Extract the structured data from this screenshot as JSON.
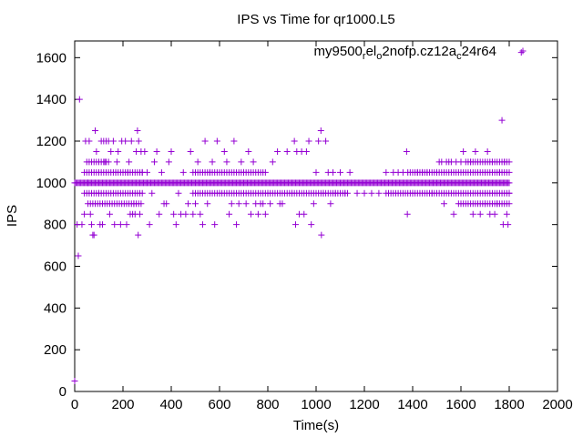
{
  "chart_data": {
    "type": "scatter",
    "title": "IPS vs Time for qr1000.L5",
    "xlabel": "Time(s)",
    "ylabel": "IPS",
    "xlim": [
      0,
      2000
    ],
    "ylim": [
      0,
      1680
    ],
    "xticks": [
      0,
      200,
      400,
      600,
      800,
      1000,
      1200,
      1400,
      1600,
      1800,
      2000
    ],
    "yticks": [
      0,
      200,
      400,
      600,
      800,
      1000,
      1200,
      1400,
      1600
    ],
    "grid": false,
    "legend_position": "top-right",
    "marker": "plus",
    "color": "#9400d3",
    "series": [
      {
        "legend": {
          "part1": "my9500",
          "sub1": "r",
          "part2": "el",
          "sub2": "o",
          "part3": "2nofp.cz12a",
          "sub3": "c",
          "part4": "24r64"
        },
        "bands": [
          {
            "y": 1000,
            "ranges": [
              [
                0,
                1800
              ]
            ],
            "step": 5
          },
          {
            "y": 950,
            "ranges": [
              [
                40,
                280
              ],
              [
                490,
                1130
              ],
              [
                1290,
                1800
              ]
            ],
            "step": 10
          },
          {
            "y": 1050,
            "ranges": [
              [
                40,
                280
              ],
              [
                490,
                790
              ],
              [
                1390,
                1800
              ]
            ],
            "step": 10
          },
          {
            "y": 900,
            "ranges": [
              [
                55,
                280
              ],
              [
                1600,
                1800
              ]
            ],
            "step": 10
          },
          {
            "y": 1100,
            "ranges": [
              [
                60,
                140
              ],
              [
                1620,
                1800
              ]
            ],
            "step": 10
          }
        ],
        "points": [
          [
            0,
            50
          ],
          [
            15,
            650
          ],
          [
            20,
            1400
          ],
          [
            10,
            800
          ],
          [
            30,
            800
          ],
          [
            40,
            850
          ],
          [
            45,
            1200
          ],
          [
            50,
            1100
          ],
          [
            55,
            1000
          ],
          [
            60,
            1200
          ],
          [
            65,
            850
          ],
          [
            70,
            800
          ],
          [
            75,
            750
          ],
          [
            80,
            750
          ],
          [
            85,
            1250
          ],
          [
            90,
            1150
          ],
          [
            100,
            950
          ],
          [
            105,
            800
          ],
          [
            110,
            1200
          ],
          [
            115,
            800
          ],
          [
            120,
            1200
          ],
          [
            125,
            1100
          ],
          [
            130,
            1200
          ],
          [
            140,
            1200
          ],
          [
            145,
            850
          ],
          [
            150,
            1150
          ],
          [
            160,
            1200
          ],
          [
            165,
            800
          ],
          [
            170,
            1050
          ],
          [
            175,
            1100
          ],
          [
            180,
            1150
          ],
          [
            190,
            800
          ],
          [
            195,
            1200
          ],
          [
            200,
            1050
          ],
          [
            210,
            1200
          ],
          [
            215,
            800
          ],
          [
            220,
            1050
          ],
          [
            225,
            1100
          ],
          [
            230,
            850
          ],
          [
            235,
            1200
          ],
          [
            240,
            850
          ],
          [
            245,
            900
          ],
          [
            250,
            850
          ],
          [
            255,
            1150
          ],
          [
            260,
            1250
          ],
          [
            263,
            750
          ],
          [
            265,
            1200
          ],
          [
            270,
            850
          ],
          [
            275,
            1150
          ],
          [
            280,
            1050
          ],
          [
            290,
            1150
          ],
          [
            300,
            1050
          ],
          [
            310,
            800
          ],
          [
            320,
            950
          ],
          [
            330,
            1100
          ],
          [
            340,
            1150
          ],
          [
            350,
            850
          ],
          [
            360,
            1050
          ],
          [
            370,
            900
          ],
          [
            380,
            900
          ],
          [
            390,
            1100
          ],
          [
            400,
            1150
          ],
          [
            410,
            850
          ],
          [
            420,
            800
          ],
          [
            430,
            950
          ],
          [
            440,
            850
          ],
          [
            450,
            1050
          ],
          [
            460,
            850
          ],
          [
            470,
            900
          ],
          [
            480,
            1150
          ],
          [
            490,
            850
          ],
          [
            500,
            900
          ],
          [
            510,
            1100
          ],
          [
            520,
            850
          ],
          [
            530,
            800
          ],
          [
            540,
            1200
          ],
          [
            550,
            900
          ],
          [
            560,
            1050
          ],
          [
            570,
            1100
          ],
          [
            580,
            800
          ],
          [
            590,
            1200
          ],
          [
            600,
            950
          ],
          [
            620,
            1150
          ],
          [
            630,
            1100
          ],
          [
            640,
            850
          ],
          [
            650,
            900
          ],
          [
            660,
            1200
          ],
          [
            670,
            800
          ],
          [
            680,
            900
          ],
          [
            690,
            1100
          ],
          [
            700,
            1050
          ],
          [
            710,
            900
          ],
          [
            720,
            1150
          ],
          [
            730,
            850
          ],
          [
            740,
            1100
          ],
          [
            750,
            900
          ],
          [
            760,
            850
          ],
          [
            770,
            900
          ],
          [
            780,
            900
          ],
          [
            790,
            850
          ],
          [
            800,
            950
          ],
          [
            810,
            900
          ],
          [
            820,
            1100
          ],
          [
            840,
            1150
          ],
          [
            850,
            900
          ],
          [
            860,
            900
          ],
          [
            880,
            1150
          ],
          [
            900,
            950
          ],
          [
            910,
            1200
          ],
          [
            915,
            800
          ],
          [
            920,
            1150
          ],
          [
            930,
            850
          ],
          [
            940,
            1150
          ],
          [
            950,
            850
          ],
          [
            960,
            1150
          ],
          [
            970,
            1200
          ],
          [
            980,
            800
          ],
          [
            990,
            900
          ],
          [
            1000,
            1050
          ],
          [
            1010,
            1200
          ],
          [
            1020,
            1250
          ],
          [
            1022,
            750
          ],
          [
            1030,
            950
          ],
          [
            1040,
            1200
          ],
          [
            1050,
            1050
          ],
          [
            1060,
            900
          ],
          [
            1070,
            1050
          ],
          [
            1080,
            950
          ],
          [
            1100,
            1050
          ],
          [
            1120,
            950
          ],
          [
            1140,
            1050
          ],
          [
            1170,
            950
          ],
          [
            1200,
            950
          ],
          [
            1230,
            950
          ],
          [
            1260,
            950
          ],
          [
            1290,
            1050
          ],
          [
            1320,
            1050
          ],
          [
            1340,
            1050
          ],
          [
            1360,
            1050
          ],
          [
            1375,
            1150
          ],
          [
            1378,
            850
          ],
          [
            1380,
            1050
          ],
          [
            1400,
            950
          ],
          [
            1420,
            1050
          ],
          [
            1440,
            1050
          ],
          [
            1460,
            1050
          ],
          [
            1480,
            950
          ],
          [
            1500,
            1050
          ],
          [
            1510,
            1100
          ],
          [
            1520,
            1100
          ],
          [
            1530,
            900
          ],
          [
            1540,
            1100
          ],
          [
            1550,
            1100
          ],
          [
            1560,
            1100
          ],
          [
            1570,
            850
          ],
          [
            1580,
            1100
          ],
          [
            1590,
            900
          ],
          [
            1600,
            1100
          ],
          [
            1610,
            1150
          ],
          [
            1640,
            1100
          ],
          [
            1650,
            850
          ],
          [
            1660,
            1150
          ],
          [
            1680,
            850
          ],
          [
            1700,
            900
          ],
          [
            1710,
            1150
          ],
          [
            1720,
            850
          ],
          [
            1730,
            1100
          ],
          [
            1740,
            850
          ],
          [
            1750,
            900
          ],
          [
            1760,
            1050
          ],
          [
            1770,
            1300
          ],
          [
            1775,
            800
          ],
          [
            1780,
            1100
          ],
          [
            1790,
            850
          ],
          [
            1795,
            800
          ],
          [
            1800,
            950
          ],
          [
            1850,
            1625
          ]
        ]
      }
    ]
  }
}
